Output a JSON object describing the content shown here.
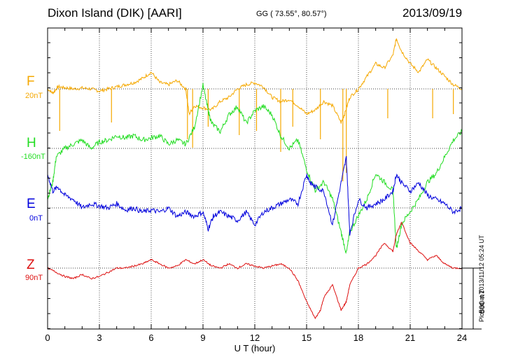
{
  "header": {
    "station": "Dixon Island (DIK)  [AARI]",
    "coords": "GG ( 73.55°,  80.57°)",
    "date": "2013/09/19"
  },
  "plotted_note": "Plotted at 2013/11/12 05:24  UT",
  "colors": {
    "F": "#f5a800",
    "H": "#22dd22",
    "E": "#0000dd",
    "Z": "#dd1111"
  },
  "chart_data": {
    "type": "line",
    "xlabel": "U T (hour)",
    "x_ticks": [
      "0",
      "3",
      "6",
      "9",
      "12",
      "15",
      "18",
      "21",
      "24"
    ],
    "xlim": [
      0,
      24
    ],
    "scale_bar": "500 nT",
    "series": [
      {
        "name": "F",
        "baseline_label": "20nT",
        "x": [
          0,
          0.3,
          0.6,
          1,
          1.5,
          2,
          2.5,
          3,
          3.5,
          4,
          4.5,
          5,
          5.5,
          6,
          6.5,
          7,
          7.5,
          8,
          8.2,
          8.5,
          9,
          9.5,
          10,
          10.5,
          11,
          11.5,
          12,
          12.5,
          13,
          13.5,
          14,
          14.5,
          15,
          15.5,
          16,
          16.5,
          17,
          17.2,
          17.5,
          18,
          18.5,
          19,
          19.5,
          20,
          20.2,
          20.5,
          21,
          21.5,
          22,
          22.5,
          23,
          23.5,
          24
        ],
        "y": [
          0,
          -10,
          5,
          3,
          0,
          2,
          0,
          -5,
          0,
          5,
          10,
          15,
          25,
          40,
          15,
          10,
          20,
          0,
          -60,
          -40,
          -45,
          -50,
          -30,
          -20,
          0,
          10,
          15,
          5,
          -20,
          -30,
          -25,
          -40,
          -60,
          -50,
          -30,
          -40,
          -80,
          -60,
          -20,
          0,
          30,
          60,
          50,
          80,
          120,
          90,
          60,
          40,
          70,
          50,
          30,
          10,
          0
        ],
        "spikes": [
          {
            "x": 0.7,
            "y": -100
          },
          {
            "x": 3.7,
            "y": -80
          },
          {
            "x": 8.1,
            "y": -120
          },
          {
            "x": 8.4,
            "y": -140
          },
          {
            "x": 9.3,
            "y": -90
          },
          {
            "x": 11.1,
            "y": -110
          },
          {
            "x": 12.1,
            "y": -100
          },
          {
            "x": 13.5,
            "y": -150
          },
          {
            "x": 14.2,
            "y": -90
          },
          {
            "x": 15.8,
            "y": -120
          },
          {
            "x": 17.1,
            "y": -220
          },
          {
            "x": 17.3,
            "y": -200
          },
          {
            "x": 19.7,
            "y": -70
          },
          {
            "x": 22.3,
            "y": -70
          },
          {
            "x": 23.5,
            "y": -60
          }
        ]
      },
      {
        "name": "H",
        "baseline_label": "-160nT",
        "x": [
          0,
          0.3,
          0.5,
          1,
          1.5,
          2,
          2.5,
          3,
          3.5,
          4,
          4.5,
          5,
          5.5,
          6,
          6.5,
          7,
          7.5,
          8,
          8.5,
          9,
          9.3,
          9.5,
          10,
          10.5,
          11,
          11.5,
          12,
          12.5,
          13,
          13.5,
          14,
          14.5,
          15,
          15.5,
          16,
          16.5,
          17,
          17.3,
          17.5,
          18,
          18.5,
          19,
          19.5,
          20,
          20.2,
          20.5,
          21,
          21.5,
          22,
          22.5,
          23,
          23.5,
          24
        ],
        "y": [
          -120,
          -80,
          -20,
          0,
          10,
          20,
          0,
          15,
          20,
          30,
          25,
          30,
          20,
          25,
          30,
          10,
          20,
          10,
          50,
          150,
          90,
          60,
          40,
          80,
          100,
          60,
          90,
          100,
          80,
          30,
          0,
          20,
          -50,
          -100,
          -80,
          -120,
          -200,
          -250,
          -200,
          -160,
          -120,
          -60,
          -80,
          -100,
          -240,
          -180,
          -150,
          -120,
          -80,
          -60,
          -20,
          20,
          40
        ]
      },
      {
        "name": "E",
        "baseline_label": "0nT",
        "x": [
          0,
          0.3,
          0.6,
          1,
          1.5,
          2,
          2.5,
          3,
          3.5,
          4,
          4.5,
          5,
          5.5,
          6,
          6.5,
          7,
          7.5,
          8,
          8.5,
          9,
          9.3,
          9.6,
          10,
          10.5,
          11,
          11.5,
          12,
          12.5,
          13,
          13.5,
          14,
          14.5,
          15,
          15.2,
          15.5,
          16,
          16.5,
          17,
          17.3,
          17.5,
          18,
          18.5,
          19,
          19.5,
          20,
          20.2,
          20.5,
          21,
          21.5,
          22,
          22.5,
          23,
          23.5,
          24
        ],
        "y": [
          80,
          40,
          50,
          30,
          20,
          0,
          10,
          5,
          0,
          10,
          -5,
          0,
          -10,
          -5,
          -10,
          0,
          -20,
          -10,
          -20,
          -10,
          -50,
          -20,
          -10,
          -20,
          -30,
          -10,
          -40,
          -10,
          0,
          10,
          20,
          10,
          80,
          60,
          50,
          40,
          -40,
          60,
          120,
          -60,
          20,
          0,
          10,
          20,
          40,
          80,
          60,
          40,
          60,
          30,
          20,
          10,
          -10,
          0
        ]
      },
      {
        "name": "Z",
        "baseline_label": "90nT",
        "x": [
          0,
          0.5,
          1,
          1.5,
          2,
          2.5,
          3,
          3.5,
          4,
          4.5,
          5,
          5.5,
          6,
          6.5,
          7,
          7.5,
          8,
          8.5,
          9,
          9.5,
          10,
          10.5,
          11,
          11.5,
          12,
          12.5,
          13,
          13.5,
          14,
          14.5,
          15,
          15.5,
          15.8,
          16,
          16.5,
          17,
          17.3,
          17.5,
          18,
          18.5,
          19,
          19.5,
          20,
          20.2,
          20.5,
          21,
          21.5,
          22,
          22.5,
          23,
          23.5,
          24
        ],
        "y": [
          0,
          -10,
          -20,
          -25,
          -15,
          -25,
          -20,
          -10,
          0,
          0,
          5,
          10,
          20,
          10,
          0,
          5,
          20,
          10,
          20,
          5,
          0,
          10,
          0,
          10,
          5,
          0,
          5,
          10,
          0,
          -30,
          -80,
          -120,
          -100,
          -70,
          -40,
          -100,
          -80,
          -40,
          0,
          10,
          30,
          60,
          40,
          80,
          110,
          60,
          40,
          20,
          30,
          10,
          0,
          0
        ]
      }
    ]
  }
}
